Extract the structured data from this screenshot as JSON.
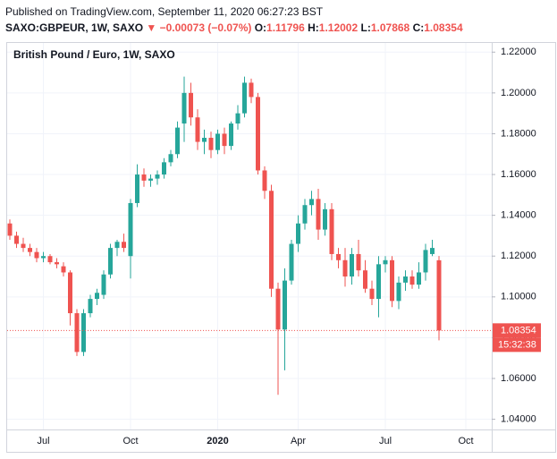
{
  "header": {
    "published": "Published on TradingView.com, September 11, 2020 06:27:23 BST",
    "symbol": "SAXO:GBPEUR, 1W, SAXO",
    "change": "−0.00073 (−0.07%)",
    "ohlc_labels": [
      "O:",
      "H:",
      "L:",
      "C:"
    ]
  },
  "chart_data": {
    "type": "candlestick",
    "title": "British Pound / Euro, 1W, SAXO",
    "categories": [
      null,
      null,
      null,
      null,
      null,
      "Jul",
      null,
      null,
      null,
      null,
      null,
      null,
      null,
      null,
      null,
      null,
      null,
      null,
      "Oct",
      null,
      null,
      null,
      null,
      null,
      null,
      null,
      null,
      null,
      null,
      null,
      null,
      "2020",
      null,
      null,
      null,
      null,
      null,
      null,
      null,
      null,
      null,
      null,
      null,
      "Apr",
      null,
      null,
      null,
      null,
      null,
      null,
      null,
      null,
      null,
      null,
      null,
      null,
      "Jul",
      null,
      null,
      null,
      null,
      null,
      null,
      null,
      null,
      null,
      null,
      null,
      "Oct",
      null
    ],
    "open": [
      1.136,
      1.13,
      1.126,
      1.124,
      1.122,
      1.119,
      1.12,
      1.117,
      1.115,
      1.112,
      1.092,
      1.073,
      1.092,
      1.099,
      1.101,
      1.111,
      1.124,
      1.127,
      1.12,
      1.146,
      1.16,
      1.157,
      1.158,
      1.16,
      1.166,
      1.17,
      1.185,
      1.2,
      1.188,
      1.176,
      1.178,
      1.172,
      1.18,
      1.174,
      1.185,
      1.19,
      1.205,
      1.198,
      1.162,
      1.152,
      1.104,
      1.084,
      1.108,
      1.126,
      1.136,
      1.145,
      1.148,
      1.133,
      1.143,
      1.121,
      1.118,
      1.11,
      1.121,
      1.113,
      1.104,
      1.099,
      1.116,
      1.118,
      1.098,
      1.107,
      1.11,
      1.106,
      1.112,
      1.121,
      1.11796,
      null,
      null,
      null,
      null,
      null
    ],
    "high": [
      1.138,
      1.132,
      1.129,
      1.126,
      1.124,
      1.122,
      1.121,
      1.119,
      1.117,
      1.113,
      1.094,
      1.094,
      1.101,
      1.104,
      1.113,
      1.126,
      1.128,
      1.131,
      1.148,
      1.165,
      1.163,
      1.16,
      1.162,
      1.168,
      1.172,
      1.186,
      1.208,
      1.205,
      1.192,
      1.182,
      1.181,
      1.182,
      1.183,
      1.186,
      1.194,
      1.208,
      1.207,
      1.2,
      1.164,
      1.155,
      1.107,
      1.114,
      1.128,
      1.14,
      1.148,
      1.152,
      1.153,
      1.146,
      1.146,
      1.124,
      1.124,
      1.124,
      1.128,
      1.118,
      1.108,
      1.12,
      1.12,
      1.12,
      1.11,
      1.113,
      1.113,
      1.117,
      1.126,
      1.128,
      1.12002,
      null,
      null,
      null,
      null,
      null
    ],
    "low": [
      1.128,
      1.124,
      1.122,
      1.12,
      1.117,
      1.117,
      1.116,
      1.114,
      1.11,
      1.086,
      1.071,
      1.071,
      1.09,
      1.096,
      1.099,
      1.109,
      1.12,
      1.122,
      1.109,
      1.144,
      1.154,
      1.154,
      1.155,
      1.158,
      1.164,
      1.168,
      1.176,
      1.184,
      1.172,
      1.17,
      1.168,
      1.17,
      1.17,
      1.172,
      1.182,
      1.188,
      1.195,
      1.16,
      1.148,
      1.1,
      1.052,
      1.064,
      1.106,
      1.122,
      1.133,
      1.14,
      1.128,
      1.13,
      1.118,
      1.114,
      1.105,
      1.106,
      1.11,
      1.102,
      1.096,
      1.09,
      1.112,
      1.095,
      1.094,
      1.103,
      1.104,
      1.104,
      1.108,
      1.12,
      1.07868,
      null,
      null,
      null,
      null,
      null
    ],
    "close": [
      1.13,
      1.126,
      1.124,
      1.122,
      1.119,
      1.12,
      1.117,
      1.116,
      1.112,
      1.092,
      1.073,
      1.092,
      1.099,
      1.102,
      1.111,
      1.124,
      1.127,
      1.124,
      1.146,
      1.16,
      1.157,
      1.158,
      1.16,
      1.166,
      1.17,
      1.183,
      1.2,
      1.188,
      1.176,
      1.178,
      1.172,
      1.18,
      1.174,
      1.185,
      1.19,
      1.205,
      1.198,
      1.162,
      1.152,
      1.104,
      1.084,
      1.108,
      1.126,
      1.136,
      1.145,
      1.148,
      1.133,
      1.143,
      1.121,
      1.118,
      1.11,
      1.121,
      1.113,
      1.104,
      1.099,
      1.116,
      1.118,
      1.098,
      1.107,
      1.11,
      1.106,
      1.112,
      1.123,
      1.124,
      1.08354,
      null,
      null,
      null,
      null,
      null
    ],
    "up_color": "#26a69a",
    "down_color": "#ef5350",
    "ylim": [
      1.035,
      1.2245
    ],
    "yticks": [
      {
        "value": 1.04,
        "label": "1.04000"
      },
      {
        "value": 1.06,
        "label": "1.06000"
      },
      {
        "value": 1.08,
        "label": "1.08000"
      },
      {
        "value": 1.1,
        "label": "1.10000"
      },
      {
        "value": 1.12,
        "label": "1.12000"
      },
      {
        "value": 1.14,
        "label": "1.14000"
      },
      {
        "value": 1.16,
        "label": "1.16000"
      },
      {
        "value": 1.18,
        "label": "1.18000"
      },
      {
        "value": 1.2,
        "label": "1.20000"
      },
      {
        "value": 1.22,
        "label": "1.22000"
      }
    ],
    "countdown": "15:32:38",
    "grid": true
  }
}
